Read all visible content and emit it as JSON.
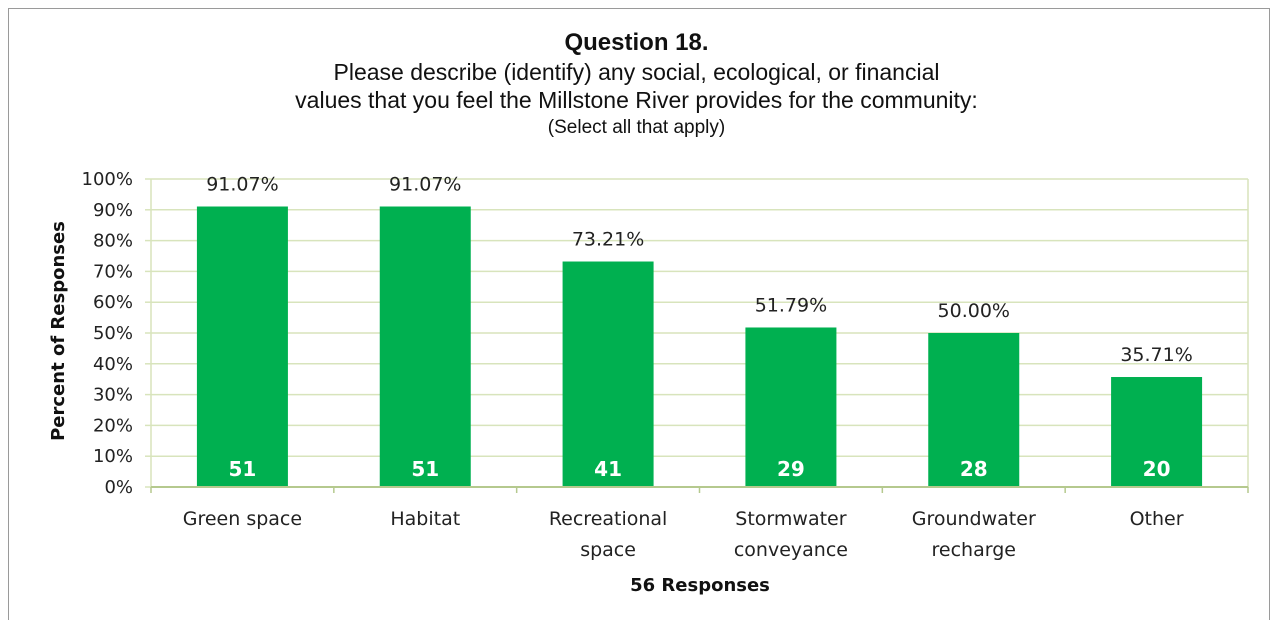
{
  "chart_data": {
    "type": "bar",
    "title": "Question 18.",
    "subtitle_lines": [
      "Please describe (identify) any social, ecological, or financial",
      "values that you feel the Millstone River provides for the community:"
    ],
    "note": "(Select all that apply)",
    "xlabel": "56 Responses",
    "ylabel": "Percent of Responses",
    "ylim": [
      0,
      100
    ],
    "yticks": [
      "0%",
      "10%",
      "20%",
      "30%",
      "40%",
      "50%",
      "60%",
      "70%",
      "80%",
      "90%",
      "100%"
    ],
    "categories": [
      [
        "Green space"
      ],
      [
        "Habitat"
      ],
      [
        "Recreational",
        "space"
      ],
      [
        "Stormwater",
        "conveyance"
      ],
      [
        "Groundwater",
        "recharge"
      ],
      [
        "Other"
      ]
    ],
    "values": [
      91.07,
      91.07,
      73.21,
      51.79,
      50.0,
      35.71
    ],
    "value_labels": [
      "91.07%",
      "91.07%",
      "73.21%",
      "51.79%",
      "50.00%",
      "35.71%"
    ],
    "counts": [
      "51",
      "51",
      "41",
      "29",
      "28",
      "20"
    ],
    "bar_color": "#00b050",
    "grid_color": "#d8e4bc",
    "grid": true,
    "legend": "none"
  }
}
